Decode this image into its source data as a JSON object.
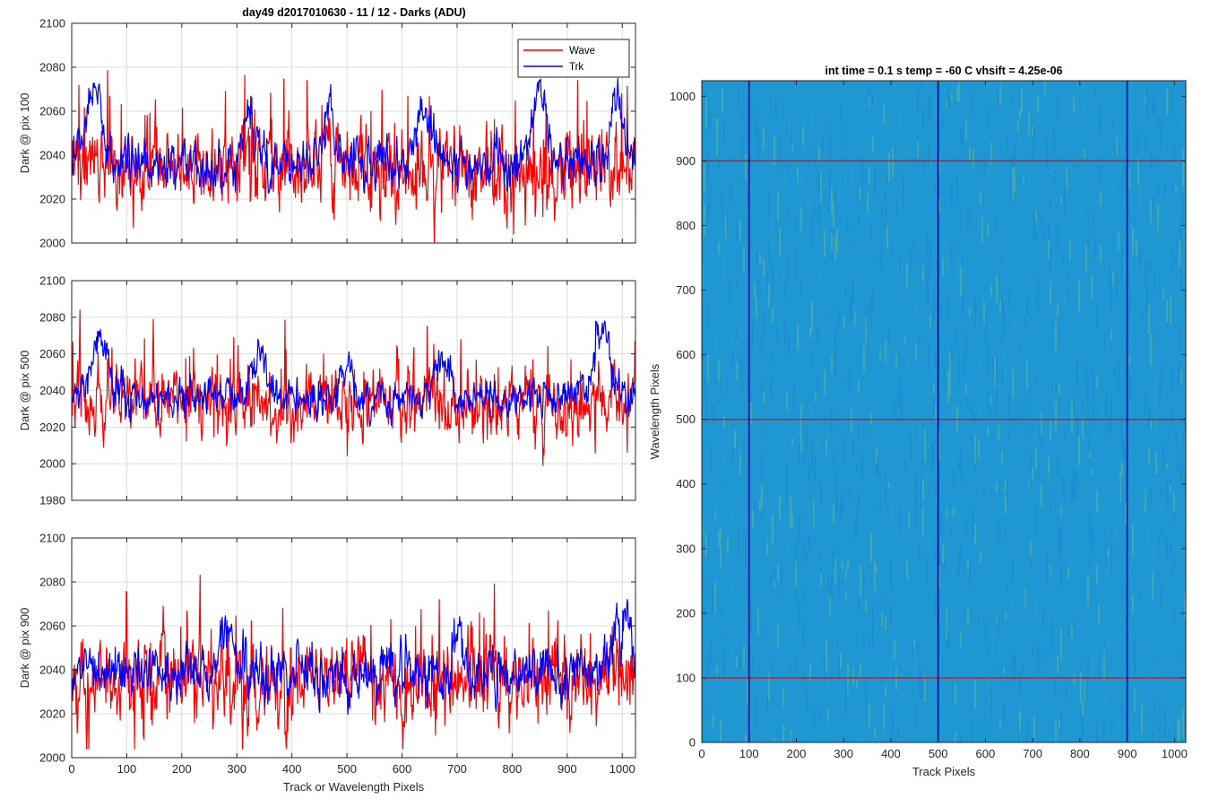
{
  "figure_title": "day49 d2017010630 - 11 / 12 - Darks (ADU)",
  "legend": {
    "entries": [
      "Wave",
      "Trk"
    ],
    "placement": "top-right"
  },
  "colors": {
    "wave": "#ff0000",
    "trk": "#0000ff",
    "grid": "#dcdcdc",
    "axis": "#262626",
    "heatmap_base": "#1f97d3",
    "heatmap_hot": "#9ad06a",
    "heatmap_low": "#1a6fd0",
    "marker_red": "#e01010",
    "marker_blue": "#0a1aa8"
  },
  "chart_data": [
    {
      "type": "line",
      "title": "",
      "xlabel": "",
      "ylabel": "Dark @ pix 100",
      "xlim": [
        0,
        1024
      ],
      "ylim": [
        2000,
        2100
      ],
      "xticks": [
        0,
        100,
        200,
        300,
        400,
        500,
        600,
        700,
        800,
        900,
        1000
      ],
      "yticks": [
        2000,
        2020,
        2040,
        2060,
        2080,
        2100
      ],
      "show_xtick_labels": false,
      "grid": true,
      "series": [
        {
          "name": "Wave",
          "color": "#ff0000",
          "baseline": 2034,
          "noise": 9,
          "spike_prob": 0.05,
          "spike_amp": 28,
          "x_samples": 1024,
          "y_min": 2000,
          "y_max": 2089
        },
        {
          "name": "Trk",
          "color": "#0000ff",
          "baseline": 2036,
          "noise": 5,
          "x_samples": 1024,
          "y_min": 2015,
          "y_max": 2081,
          "bumps": [
            [
              40,
              2070,
              20
            ],
            [
              320,
              2060,
              15
            ],
            [
              470,
              2058,
              15
            ],
            [
              640,
              2062,
              20
            ],
            [
              850,
              2072,
              20
            ],
            [
              990,
              2068,
              15
            ]
          ]
        }
      ]
    },
    {
      "type": "line",
      "title": "",
      "xlabel": "",
      "ylabel": "Dark @ pix 500",
      "xlim": [
        0,
        1024
      ],
      "ylim": [
        1980,
        2100
      ],
      "xticks": [
        0,
        100,
        200,
        300,
        400,
        500,
        600,
        700,
        800,
        900,
        1000
      ],
      "yticks": [
        1980,
        2000,
        2020,
        2040,
        2060,
        2080,
        2100
      ],
      "show_xtick_labels": false,
      "grid": true,
      "series": [
        {
          "name": "Wave",
          "color": "#ff0000",
          "baseline": 2033,
          "noise": 9,
          "spike_prob": 0.05,
          "spike_amp": 28,
          "x_samples": 1024,
          "y_min": 1999,
          "y_max": 2084
        },
        {
          "name": "Trk",
          "color": "#0000ff",
          "baseline": 2037,
          "noise": 5,
          "x_samples": 1024,
          "y_min": 2010,
          "y_max": 2080,
          "bumps": [
            [
              50,
              2065,
              20
            ],
            [
              340,
              2060,
              15
            ],
            [
              500,
              2055,
              15
            ],
            [
              670,
              2060,
              20
            ],
            [
              960,
              2068,
              25
            ]
          ]
        }
      ]
    },
    {
      "type": "line",
      "title": "",
      "xlabel": "Track or Wavelength Pixels",
      "ylabel": "Dark @ pix 900",
      "xlim": [
        0,
        1024
      ],
      "ylim": [
        2000,
        2100
      ],
      "xticks": [
        0,
        100,
        200,
        300,
        400,
        500,
        600,
        700,
        800,
        900,
        1000
      ],
      "yticks": [
        2000,
        2020,
        2040,
        2060,
        2080,
        2100
      ],
      "show_xtick_labels": true,
      "grid": true,
      "series": [
        {
          "name": "Wave",
          "color": "#ff0000",
          "baseline": 2034,
          "noise": 9,
          "spike_prob": 0.05,
          "spike_amp": 28,
          "x_samples": 1024,
          "y_min": 2004,
          "y_max": 2083
        },
        {
          "name": "Trk",
          "color": "#0000ff",
          "baseline": 2038,
          "noise": 6,
          "x_samples": 1024,
          "y_min": 2011,
          "y_max": 2072,
          "bumps": [
            [
              280,
              2060,
              20
            ],
            [
              700,
              2055,
              15
            ],
            [
              1000,
              2065,
              20
            ]
          ]
        }
      ]
    },
    {
      "type": "heatmap",
      "title": "int time = 0.1 s   temp = -60 C   vhsift = 4.25e-06",
      "xlabel": "Track Pixels",
      "ylabel": "Wavelength Pixels",
      "xlim": [
        0,
        1024
      ],
      "ylim": [
        0,
        1024
      ],
      "xticks": [
        0,
        100,
        200,
        300,
        400,
        500,
        600,
        700,
        800,
        900,
        1000
      ],
      "yticks": [
        0,
        100,
        200,
        300,
        400,
        500,
        600,
        700,
        800,
        900,
        1000
      ],
      "grid": false,
      "colormap": "parula",
      "horizontal_markers": {
        "values": [
          100,
          500,
          900
        ],
        "color": "#e01010"
      },
      "vertical_markers": {
        "values": [
          100,
          500,
          900
        ],
        "color": "#0a1aa8"
      }
    }
  ]
}
